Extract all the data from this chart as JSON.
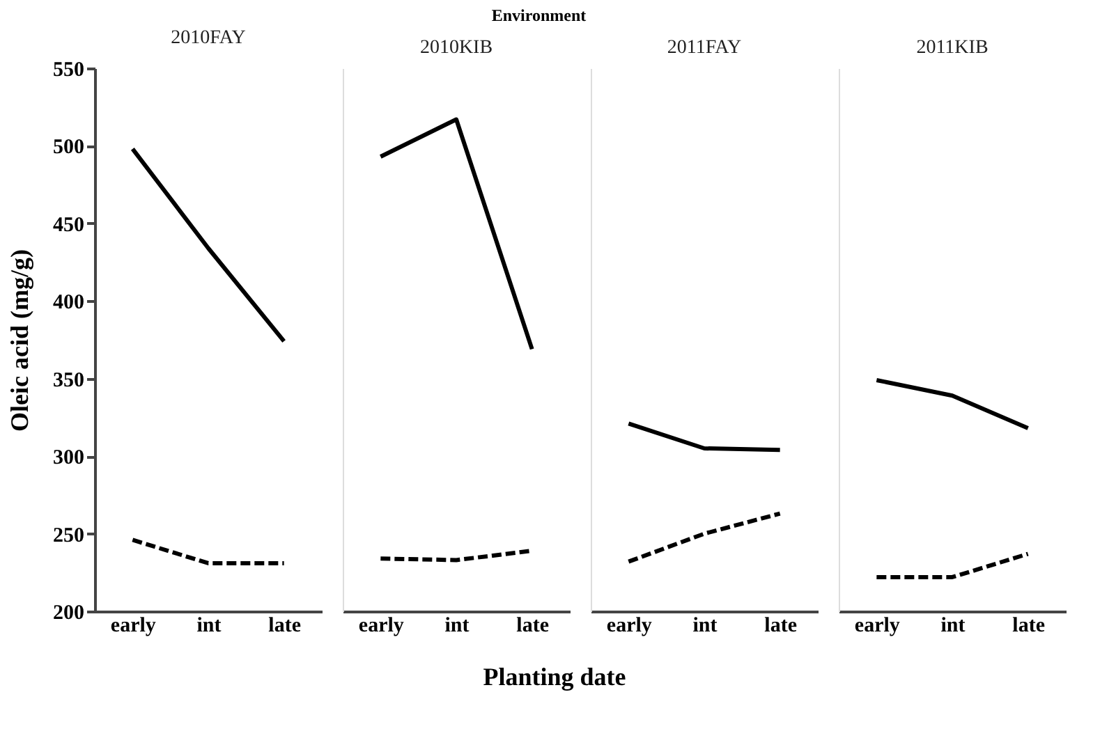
{
  "chart_data": [
    {
      "type": "line",
      "title": "2010FAY",
      "ylabel": "Oleic acid (mg/g)",
      "annotations": [
        "Environment",
        "Planting date"
      ],
      "categories": [
        "early",
        "int",
        "late"
      ],
      "ylim": [
        200,
        550
      ],
      "yticks": [
        200,
        250,
        300,
        350,
        400,
        450,
        500,
        550
      ],
      "grid": false,
      "legend": false,
      "marker": "none",
      "series": [
        {
          "color": "#000000",
          "line_style": "solid",
          "values": [
            498,
            434,
            374
          ]
        },
        {
          "color": "#000000",
          "line_style": "dashed",
          "values": [
            246,
            231,
            231
          ]
        }
      ]
    },
    {
      "type": "line",
      "title": "2010KIB",
      "categories": [
        "early",
        "int",
        "late"
      ],
      "ylim": [
        200,
        550
      ],
      "tick_labels": "x",
      "grid": false,
      "legend": false,
      "marker": "none",
      "series": [
        {
          "color": "#000000",
          "line_style": "solid",
          "values": [
            493,
            517,
            369
          ]
        },
        {
          "color": "#000000",
          "line_style": "dashed",
          "values": [
            234,
            233,
            239
          ]
        }
      ]
    },
    {
      "type": "line",
      "title": "2011FAY",
      "categories": [
        "early",
        "int",
        "late"
      ],
      "ylim": [
        200,
        550
      ],
      "tick_labels": "x",
      "grid": false,
      "legend": false,
      "marker": "none",
      "series": [
        {
          "color": "#000000",
          "line_style": "solid",
          "values": [
            321,
            305,
            304
          ]
        },
        {
          "color": "#000000",
          "line_style": "dashed",
          "values": [
            232,
            250,
            263
          ]
        }
      ]
    },
    {
      "type": "line",
      "title": "2011KIB",
      "categories": [
        "early",
        "int",
        "late"
      ],
      "ylim": [
        200,
        550
      ],
      "tick_labels": "x",
      "grid": false,
      "legend": false,
      "marker": "none",
      "series": [
        {
          "color": "#000000",
          "line_style": "solid",
          "values": [
            349,
            339,
            318
          ]
        },
        {
          "color": "#000000",
          "line_style": "dashed",
          "values": [
            222,
            222,
            237
          ]
        }
      ]
    }
  ]
}
